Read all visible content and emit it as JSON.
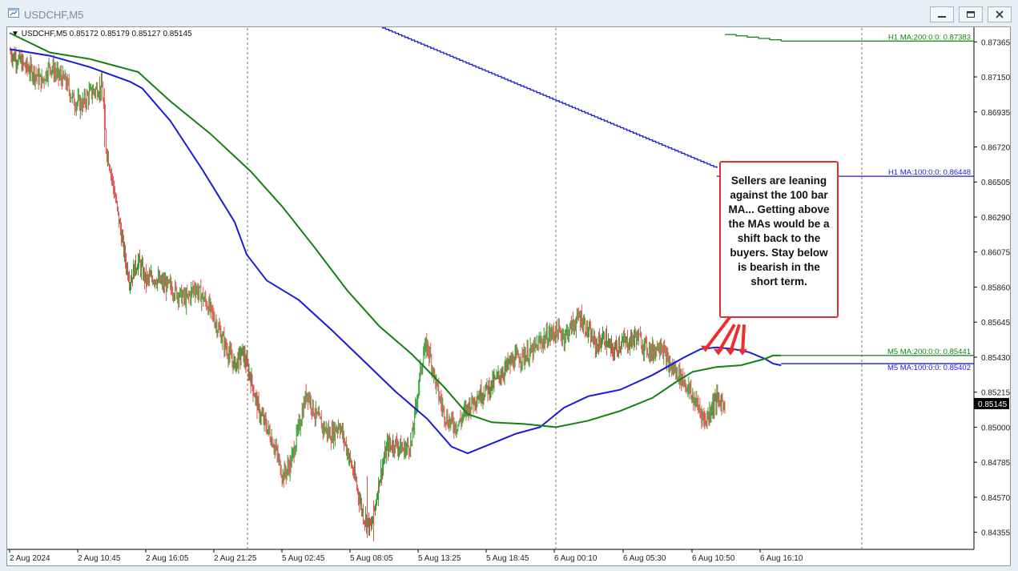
{
  "window": {
    "title": "USDCHF,M5"
  },
  "header": {
    "symbol_info": "▼ USDCHF,M5  0.85172 0.85179 0.85127 0.85145"
  },
  "chart_data": {
    "type": "candlestick",
    "symbol": "USDCHF",
    "timeframe": "M5",
    "ohlc_header": {
      "open": 0.85172,
      "high": 0.85179,
      "low": 0.85127,
      "close": 0.85145
    },
    "current_price": "0.85145",
    "ylim": [
      0.8425,
      0.8745
    ],
    "y_ticks": [
      "0.87365",
      "0.87150",
      "0.86935",
      "0.86720",
      "0.86505",
      "0.86290",
      "0.86075",
      "0.85860",
      "0.85645",
      "0.85430",
      "0.85215",
      "0.85000",
      "0.84785",
      "0.84570",
      "0.84355"
    ],
    "x_ticks": [
      "2 Aug 2024",
      "2 Aug 10:45",
      "2 Aug 16:05",
      "2 Aug 21:25",
      "5 Aug 02:45",
      "5 Aug 08:05",
      "5 Aug 13:25",
      "5 Aug 18:45",
      "6 Aug 00:10",
      "6 Aug 05:30",
      "6 Aug 10:50",
      "6 Aug 16:10"
    ],
    "price_path": [
      [
        0,
        0.873
      ],
      [
        10,
        0.8726
      ],
      [
        20,
        0.8721
      ],
      [
        30,
        0.8718
      ],
      [
        40,
        0.8712
      ],
      [
        50,
        0.8722
      ],
      [
        60,
        0.8716
      ],
      [
        70,
        0.8712
      ],
      [
        80,
        0.87
      ],
      [
        90,
        0.8698
      ],
      [
        100,
        0.8705
      ],
      [
        110,
        0.8708
      ],
      [
        115,
        0.8708
      ],
      [
        118,
        0.869
      ],
      [
        120,
        0.8672
      ],
      [
        125,
        0.866
      ],
      [
        130,
        0.8645
      ],
      [
        135,
        0.863
      ],
      [
        140,
        0.8615
      ],
      [
        145,
        0.86
      ],
      [
        150,
        0.859
      ],
      [
        155,
        0.8597
      ],
      [
        160,
        0.8602
      ],
      [
        170,
        0.859
      ],
      [
        180,
        0.8592
      ],
      [
        190,
        0.8588
      ],
      [
        200,
        0.8586
      ],
      [
        210,
        0.8582
      ],
      [
        220,
        0.8578
      ],
      [
        230,
        0.8586
      ],
      [
        240,
        0.858
      ],
      [
        250,
        0.8572
      ],
      [
        260,
        0.856
      ],
      [
        270,
        0.8548
      ],
      [
        280,
        0.8538
      ],
      [
        290,
        0.8546
      ],
      [
        300,
        0.853
      ],
      [
        310,
        0.851
      ],
      [
        320,
        0.85
      ],
      [
        330,
        0.8488
      ],
      [
        340,
        0.847
      ],
      [
        350,
        0.8478
      ],
      [
        360,
        0.85
      ],
      [
        370,
        0.8522
      ],
      [
        380,
        0.8508
      ],
      [
        390,
        0.85
      ],
      [
        400,
        0.8495
      ],
      [
        410,
        0.8502
      ],
      [
        420,
        0.8486
      ],
      [
        430,
        0.8468
      ],
      [
        440,
        0.8446
      ],
      [
        450,
        0.8438
      ],
      [
        455,
        0.8452
      ],
      [
        460,
        0.8468
      ],
      [
        470,
        0.8488
      ],
      [
        480,
        0.849
      ],
      [
        490,
        0.8486
      ],
      [
        500,
        0.849
      ],
      [
        505,
        0.851
      ],
      [
        510,
        0.853
      ],
      [
        515,
        0.8545
      ],
      [
        520,
        0.855
      ],
      [
        525,
        0.854
      ],
      [
        530,
        0.8528
      ],
      [
        535,
        0.8518
      ],
      [
        540,
        0.851
      ],
      [
        545,
        0.8504
      ],
      [
        550,
        0.8503
      ],
      [
        555,
        0.8501
      ],
      [
        560,
        0.8503
      ],
      [
        565,
        0.8508
      ],
      [
        570,
        0.8512
      ],
      [
        580,
        0.8518
      ],
      [
        590,
        0.8522
      ],
      [
        600,
        0.8526
      ],
      [
        610,
        0.8532
      ],
      [
        620,
        0.8538
      ],
      [
        630,
        0.8542
      ],
      [
        640,
        0.8544
      ],
      [
        650,
        0.8546
      ],
      [
        660,
        0.8552
      ],
      [
        670,
        0.8556
      ],
      [
        680,
        0.8559
      ],
      [
        690,
        0.8556
      ],
      [
        700,
        0.8562
      ],
      [
        710,
        0.8568
      ],
      [
        720,
        0.8558
      ],
      [
        730,
        0.855
      ],
      [
        740,
        0.8555
      ],
      [
        750,
        0.8546
      ],
      [
        760,
        0.8552
      ],
      [
        770,
        0.8552
      ],
      [
        780,
        0.8556
      ],
      [
        790,
        0.855
      ],
      [
        800,
        0.8546
      ],
      [
        810,
        0.8552
      ],
      [
        820,
        0.8538
      ],
      [
        830,
        0.8534
      ],
      [
        840,
        0.8528
      ],
      [
        850,
        0.8518
      ],
      [
        860,
        0.851
      ],
      [
        865,
        0.8503
      ],
      [
        870,
        0.8508
      ],
      [
        875,
        0.8514
      ],
      [
        880,
        0.8517
      ],
      [
        885,
        0.8515
      ],
      [
        890,
        0.8516
      ]
    ],
    "series": [
      {
        "name": "M5 MA:100:0:0",
        "color": "#1a1adc",
        "points": [
          [
            0,
            0.8732
          ],
          [
            50,
            0.8728
          ],
          [
            100,
            0.8721
          ],
          [
            150,
            0.8712
          ],
          [
            165,
            0.8708
          ],
          [
            200,
            0.8688
          ],
          [
            240,
            0.8658
          ],
          [
            280,
            0.8626
          ],
          [
            295,
            0.8606
          ],
          [
            320,
            0.859
          ],
          [
            360,
            0.8578
          ],
          [
            400,
            0.856
          ],
          [
            440,
            0.8541
          ],
          [
            480,
            0.8522
          ],
          [
            520,
            0.8505
          ],
          [
            550,
            0.8488
          ],
          [
            570,
            0.8484
          ],
          [
            600,
            0.849
          ],
          [
            630,
            0.8496
          ],
          [
            660,
            0.85
          ],
          [
            690,
            0.8512
          ],
          [
            720,
            0.8519
          ],
          [
            760,
            0.8523
          ],
          [
            800,
            0.8532
          ],
          [
            840,
            0.8543
          ],
          [
            860,
            0.8548
          ],
          [
            880,
            0.8549
          ],
          [
            900,
            0.8548
          ],
          [
            920,
            0.8546
          ],
          [
            940,
            0.8542
          ],
          [
            950,
            0.8539
          ],
          [
            960,
            0.8538
          ]
        ]
      },
      {
        "name": "M5 MA:200:0:0",
        "color": "#0f820f",
        "points": [
          [
            0,
            0.8742
          ],
          [
            50,
            0.873
          ],
          [
            100,
            0.8726
          ],
          [
            160,
            0.8718
          ],
          [
            200,
            0.87
          ],
          [
            250,
            0.868
          ],
          [
            300,
            0.8657
          ],
          [
            340,
            0.8635
          ],
          [
            380,
            0.861
          ],
          [
            420,
            0.8584
          ],
          [
            460,
            0.8562
          ],
          [
            500,
            0.8545
          ],
          [
            540,
            0.8525
          ],
          [
            570,
            0.8508
          ],
          [
            600,
            0.8503
          ],
          [
            640,
            0.8502
          ],
          [
            680,
            0.85
          ],
          [
            720,
            0.8504
          ],
          [
            760,
            0.851
          ],
          [
            800,
            0.8518
          ],
          [
            830,
            0.8528
          ],
          [
            850,
            0.8534
          ],
          [
            880,
            0.8537
          ],
          [
            910,
            0.8538
          ],
          [
            940,
            0.8542
          ],
          [
            950,
            0.8544
          ],
          [
            960,
            0.8544
          ]
        ]
      }
    ],
    "step_lines": [
      {
        "name": "H1 MA:100:0:0",
        "color": "#1a1adc",
        "start": [
          440,
          0.875
        ],
        "end": [
          880,
          0.8659
        ],
        "step": 4
      },
      {
        "name": "H1 MA:200:0:0",
        "color": "#0f820f",
        "start": [
          890,
          0.8741
        ],
        "end": [
          960,
          0.8737
        ],
        "step": 14
      }
    ],
    "level_labels": [
      {
        "text": "H1 MA:200:0:0: 0.87383",
        "color": "#0f820f",
        "y": 0.8737
      },
      {
        "text": "H1 MA:100:0:0: 0.86448",
        "color": "#1a1adc",
        "y": 0.8654
      },
      {
        "text": "M5 MA:200:0:0: 0.85441",
        "color": "#0f820f",
        "y": 0.8544
      },
      {
        "text": "M5 MA:100:0:0: 0.85402",
        "color": "#1a1adc",
        "y": 0.8539
      }
    ],
    "annotation": "Sellers are leaning against the 100 bar MA... Getting above the MAs would be a shift back to the buyers. Stay below is bearish in the short term."
  }
}
